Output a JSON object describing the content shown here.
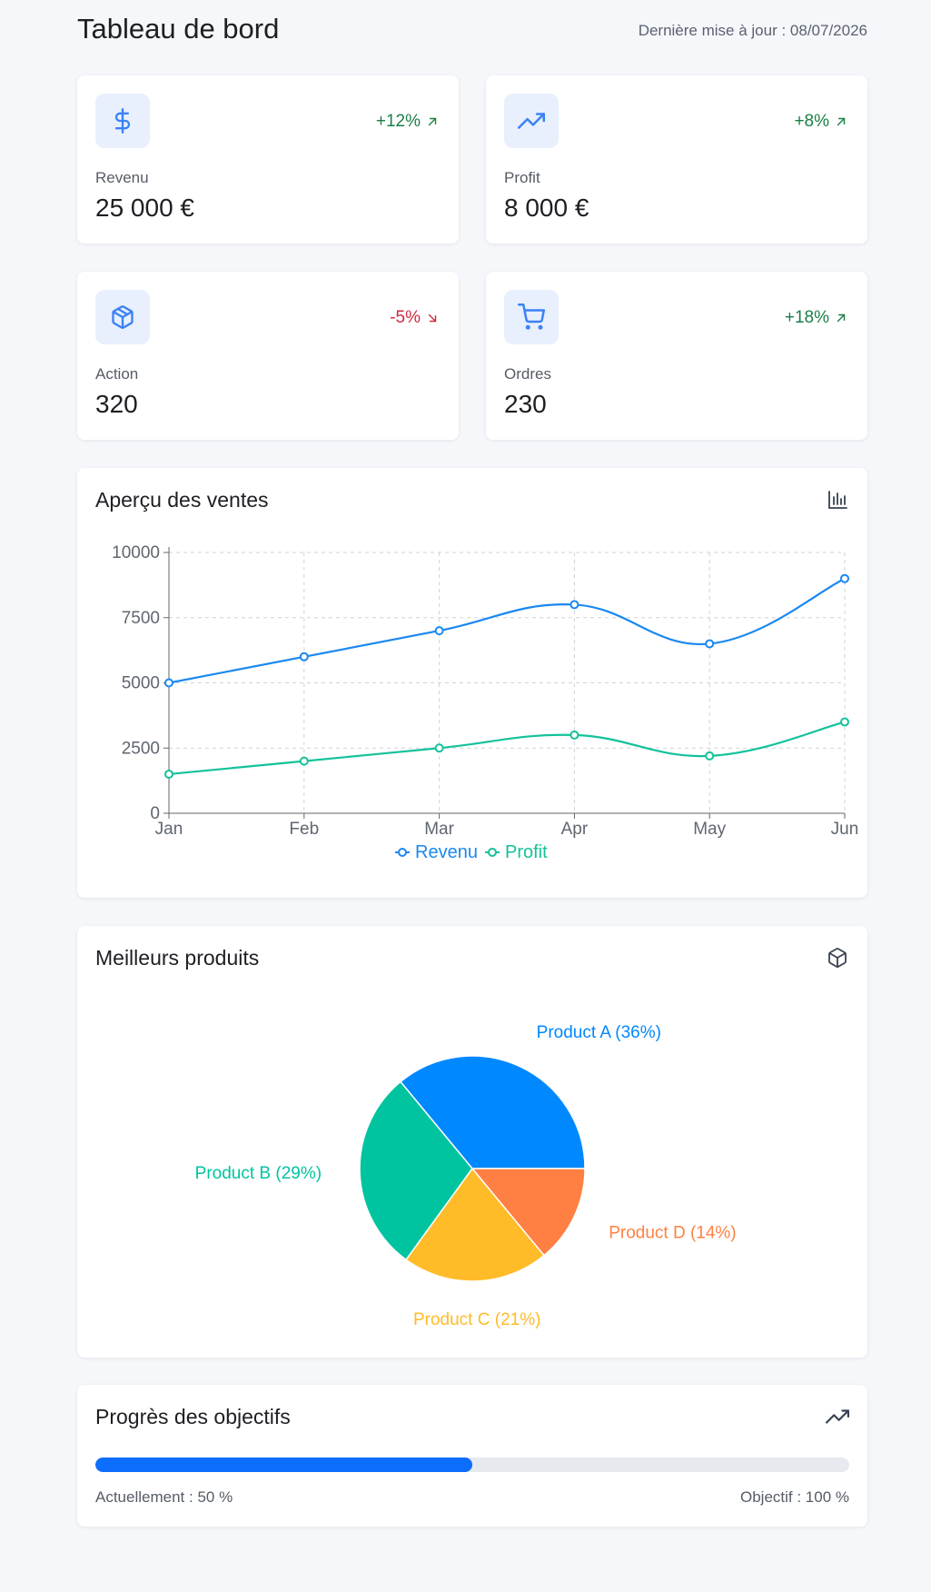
{
  "header": {
    "title": "Tableau de bord",
    "updated": "Dernière mise à jour : 08/07/2026"
  },
  "stats": [
    {
      "label": "Revenu",
      "value": "25 000 €",
      "change": "+12%",
      "direction": "up",
      "icon": "dollar-icon"
    },
    {
      "label": "Profit",
      "value": "8 000 €",
      "change": "+8%",
      "direction": "up",
      "icon": "trending-up-icon"
    },
    {
      "label": "Action",
      "value": "320",
      "change": "-5%",
      "direction": "down",
      "icon": "box-icon"
    },
    {
      "label": "Ordres",
      "value": "230",
      "change": "+18%",
      "direction": "up",
      "icon": "cart-icon"
    }
  ],
  "sales": {
    "title": "Aperçu des ventes",
    "icon": "bar-chart-icon"
  },
  "products": {
    "title": "Meilleurs produits",
    "icon": "box-icon"
  },
  "goals": {
    "title": "Progrès des objectifs",
    "icon": "trending-up-icon",
    "progress": 0.5,
    "current_label": "Actuellement : 50 %",
    "target_label": "Objectif : 100 %"
  },
  "colors": {
    "accent": "#e8effd",
    "icon_blue": "#3b82f6",
    "revenue": "#1a88f0",
    "profit": "#13c29a",
    "up": "#1a7f45",
    "down": "#d1293d",
    "product_a": "#0088fe",
    "product_b": "#00c49f",
    "product_c": "#ffbb28",
    "product_d": "#ff8042"
  },
  "chart_data": [
    {
      "type": "line",
      "title": "Aperçu des ventes",
      "x": [
        "Jan",
        "Feb",
        "Mar",
        "Apr",
        "May",
        "Jun"
      ],
      "ylim": [
        0,
        10000
      ],
      "yticks": [
        0,
        2500,
        5000,
        7500,
        10000
      ],
      "grid": true,
      "legend": "bottom",
      "series": [
        {
          "name": "Revenu",
          "color": "#1a88f0",
          "values": [
            5000,
            6000,
            7000,
            8000,
            6500,
            9000
          ]
        },
        {
          "name": "Profit",
          "color": "#13c29a",
          "values": [
            1500,
            2000,
            2500,
            3000,
            2200,
            3500
          ]
        }
      ]
    },
    {
      "type": "pie",
      "title": "Meilleurs produits",
      "categories": [
        "Product A",
        "Product B",
        "Product C",
        "Product D"
      ],
      "values": [
        36,
        29,
        21,
        14
      ],
      "labels": [
        "Product A (36%)",
        "Product B (29%)",
        "Product C (21%)",
        "Product D (14%)"
      ],
      "colors": [
        "#0088fe",
        "#00c49f",
        "#ffbb28",
        "#ff8042"
      ]
    }
  ]
}
